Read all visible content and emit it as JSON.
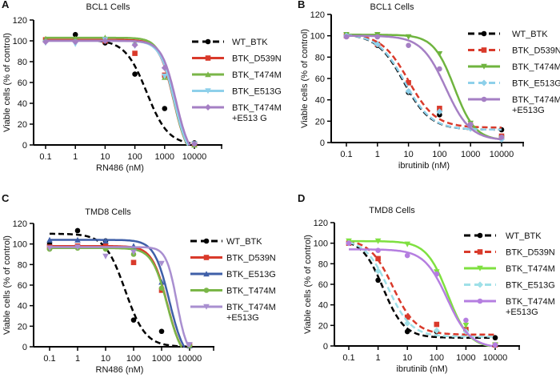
{
  "chart_data": [
    {
      "panel_label": "A",
      "type": "line",
      "title": "BCL1 Cells",
      "xlabel": "RN486 (nM)",
      "ylabel": "Viable cells (% of control)",
      "xscale": "log",
      "xticks": [
        "0.1",
        "1",
        "10",
        "100",
        "1000",
        "10000"
      ],
      "ylim": [
        0,
        120
      ],
      "yticks": [
        "0",
        "20",
        "40",
        "60",
        "80",
        "100",
        "120"
      ],
      "grid": false,
      "legend": "right",
      "x": [
        0.1,
        1,
        10,
        100,
        1000,
        10000
      ],
      "series": [
        {
          "name": "WT_BTK",
          "legend_lines": [
            "WT_BTK"
          ],
          "color": "#000000",
          "dash": true,
          "marker": "circle",
          "values": [
            100,
            106,
            98,
            68,
            35,
            2
          ],
          "fit": {
            "top": 101,
            "bottom": 0,
            "ic50": 250,
            "hill": 1.2
          }
        },
        {
          "name": "BTK_D539N",
          "legend_lines": [
            "BTK_D539N"
          ],
          "color": "#d93a2b",
          "dash": false,
          "marker": "square",
          "values": [
            101,
            101,
            100,
            88,
            67,
            1
          ],
          "fit": {
            "top": 101,
            "bottom": -15,
            "ic50": 2000,
            "hill": 1.8
          }
        },
        {
          "name": "BTK_T474M",
          "legend_lines": [
            "BTK_T474M"
          ],
          "color": "#7ab648",
          "dash": false,
          "marker": "triangle-up",
          "values": [
            102,
            102,
            103,
            98,
            65,
            0
          ],
          "fit": {
            "top": 103,
            "bottom": -15,
            "ic50": 2000,
            "hill": 1.8
          }
        },
        {
          "name": "BTK_E513G",
          "legend_lines": [
            "BTK_E513G"
          ],
          "color": "#8ed0ea",
          "dash": false,
          "marker": "triangle-down",
          "values": [
            98,
            97,
            101,
            95,
            66,
            1
          ],
          "fit": {
            "top": 100,
            "bottom": -15,
            "ic50": 2100,
            "hill": 1.8
          }
        },
        {
          "name": "BTK_T474M +E513G",
          "legend_lines": [
            "BTK_T474M",
            "+E513 G"
          ],
          "color": "#a57fc4",
          "dash": false,
          "marker": "diamond",
          "values": [
            99,
            99,
            100,
            96,
            74,
            1
          ],
          "fit": {
            "top": 100,
            "bottom": -15,
            "ic50": 2400,
            "hill": 1.8
          }
        }
      ]
    },
    {
      "panel_label": "B",
      "type": "line",
      "title": "BCL1 Cells",
      "xlabel": "ibrutinib (nM)",
      "ylabel": "Viable cells (% of control)",
      "xscale": "log",
      "xticks": [
        "0.1",
        "1",
        "10",
        "100",
        "1000",
        "10000"
      ],
      "ylim": [
        0,
        120
      ],
      "yticks": [
        "0",
        "20",
        "40",
        "60",
        "80",
        "100",
        "120"
      ],
      "grid": false,
      "legend": "right",
      "x": [
        0.1,
        1,
        10,
        100,
        1000,
        10000
      ],
      "series": [
        {
          "name": "WT_BTK",
          "legend_lines": [
            "WT_BTK"
          ],
          "color": "#000000",
          "dash": true,
          "marker": "circle",
          "values": [
            100,
            91,
            47,
            26,
            15,
            12
          ],
          "fit": {
            "top": 102,
            "bottom": 12,
            "ic50": 7,
            "hill": 1.0
          }
        },
        {
          "name": "BTK_D539N",
          "legend_lines": [
            "BTK_D539N"
          ],
          "color": "#d93a2b",
          "dash": true,
          "marker": "square",
          "values": [
            100,
            92,
            56,
            32,
            16,
            6
          ],
          "fit": {
            "top": 102,
            "bottom": 14,
            "ic50": 10,
            "hill": 1.0
          }
        },
        {
          "name": "BTK_T474M",
          "legend_lines": [
            "BTK_T474M"
          ],
          "color": "#6fb43f",
          "dash": false,
          "marker": "triangle-down",
          "values": [
            101,
            101,
            99,
            83,
            18,
            4
          ],
          "fit": {
            "top": 101,
            "bottom": 2,
            "ic50": 300,
            "hill": 1.3
          }
        },
        {
          "name": "BTK_E513G",
          "legend_lines": [
            "BTK_E513G"
          ],
          "color": "#8ed0ea",
          "dash": true,
          "marker": "diamond",
          "values": [
            100,
            92,
            48,
            29,
            13,
            3
          ],
          "fit": {
            "top": 102,
            "bottom": 12,
            "ic50": 7.5,
            "hill": 1.0
          }
        },
        {
          "name": "BTK_T474M +E513G",
          "legend_lines": [
            "BTK_T474M",
            "+E513G"
          ],
          "color": "#a57fc4",
          "dash": false,
          "marker": "circle",
          "values": [
            99,
            99,
            91,
            69,
            17,
            5
          ],
          "fit": {
            "top": 100,
            "bottom": 2,
            "ic50": 160,
            "hill": 1.1
          }
        }
      ]
    },
    {
      "panel_label": "C",
      "type": "line",
      "title": "TMD8 Cells",
      "xlabel": "RN486 (nM)",
      "ylabel": "Viable cells (% of control)",
      "xscale": "log",
      "xticks": [
        "0.1",
        "1",
        "10",
        "100",
        "1000",
        "10000"
      ],
      "ylim": [
        0,
        120
      ],
      "yticks": [
        "0",
        "20",
        "40",
        "60",
        "80",
        "100",
        "120"
      ],
      "grid": false,
      "legend": "right",
      "x": [
        0.1,
        1,
        10,
        100,
        1000,
        10000
      ],
      "series": [
        {
          "name": "WT_BTK",
          "legend_lines": [
            "WT_BTK"
          ],
          "color": "#000000",
          "dash": true,
          "marker": "circle",
          "values": [
            100,
            113,
            103,
            26,
            15,
            1
          ],
          "fit": {
            "top": 110,
            "bottom": 0,
            "ic50": 50,
            "hill": 1.2
          }
        },
        {
          "name": "BTK_D539N",
          "legend_lines": [
            "BTK_D539N"
          ],
          "color": "#d93a2b",
          "dash": false,
          "marker": "square",
          "values": [
            97,
            98,
            98,
            82,
            55,
            1
          ],
          "fit": {
            "top": 98,
            "bottom": -15,
            "ic50": 1600,
            "hill": 1.6
          }
        },
        {
          "name": "BTK_E513G",
          "legend_lines": [
            "BTK_E513G"
          ],
          "color": "#3f5fa8",
          "dash": false,
          "marker": "triangle-up",
          "values": [
            104,
            104,
            103,
            98,
            63,
            1
          ],
          "fit": {
            "top": 104,
            "bottom": -15,
            "ic50": 1900,
            "hill": 1.6
          }
        },
        {
          "name": "BTK_T474M",
          "legend_lines": [
            "BTK_T474M"
          ],
          "color": "#7ab648",
          "dash": false,
          "marker": "circle",
          "values": [
            95,
            96,
            95,
            90,
            57,
            1
          ],
          "fit": {
            "top": 96,
            "bottom": -15,
            "ic50": 1600,
            "hill": 1.6
          }
        },
        {
          "name": "BTK_T474M +E513G",
          "legend_lines": [
            "BTK_T474M",
            "+E513G"
          ],
          "color": "#a98fd0",
          "dash": false,
          "marker": "triangle-down",
          "values": [
            96,
            97,
            88,
            92,
            81,
            2
          ],
          "fit": {
            "top": 97,
            "bottom": -10,
            "ic50": 3500,
            "hill": 2.3
          }
        }
      ]
    },
    {
      "panel_label": "D",
      "type": "line",
      "title": "TMD8 Cells",
      "xlabel": "ibrutinib (nM)",
      "ylabel": "Viable cells (% of control)",
      "xscale": "log",
      "xticks": [
        "0.1",
        "1",
        "10",
        "100",
        "1000",
        "10000"
      ],
      "ylim": [
        0,
        120
      ],
      "yticks": [
        "0",
        "20",
        "40",
        "60",
        "80",
        "100",
        "120"
      ],
      "grid": false,
      "legend": "right",
      "x": [
        0.1,
        1,
        10,
        100,
        1000,
        10000
      ],
      "series": [
        {
          "name": "WT_BTK",
          "legend_lines": [
            "WT_BTK"
          ],
          "color": "#000000",
          "dash": true,
          "marker": "circle",
          "values": [
            100,
            64,
            14,
            14,
            15,
            8
          ],
          "fit": {
            "top": 104,
            "bottom": 8,
            "ic50": 1.5,
            "hill": 1.2
          }
        },
        {
          "name": "BTK_D539N",
          "legend_lines": [
            "BTK_D539N"
          ],
          "color": "#d93a2b",
          "dash": true,
          "marker": "square",
          "values": [
            100,
            85,
            28,
            21,
            16,
            1
          ],
          "fit": {
            "top": 104,
            "bottom": 11,
            "ic50": 3.2,
            "hill": 1.1
          }
        },
        {
          "name": "BTK_T474M",
          "legend_lines": [
            "BTK_T474M"
          ],
          "color": "#7fe040",
          "dash": false,
          "marker": "triangle-down",
          "values": [
            102,
            102,
            99,
            72,
            20,
            1
          ],
          "fit": {
            "top": 102,
            "bottom": -2,
            "ic50": 240,
            "hill": 1.2
          }
        },
        {
          "name": "BTK_E513G",
          "legend_lines": [
            "BTK_E513G"
          ],
          "color": "#9fe0e8",
          "dash": true,
          "marker": "diamond",
          "values": [
            100,
            73,
            22,
            15,
            14,
            1
          ],
          "fit": {
            "top": 104,
            "bottom": 9,
            "ic50": 2.2,
            "hill": 1.1
          }
        },
        {
          "name": "BTK_T474M +E513G",
          "legend_lines": [
            "BTK_T474M",
            "+E513G"
          ],
          "color": "#b57ee0",
          "dash": false,
          "marker": "circle",
          "values": [
            100,
            93,
            88,
            70,
            25,
            1
          ],
          "fit": {
            "top": 94,
            "bottom": -2,
            "ic50": 230,
            "hill": 1.1
          }
        }
      ]
    }
  ]
}
